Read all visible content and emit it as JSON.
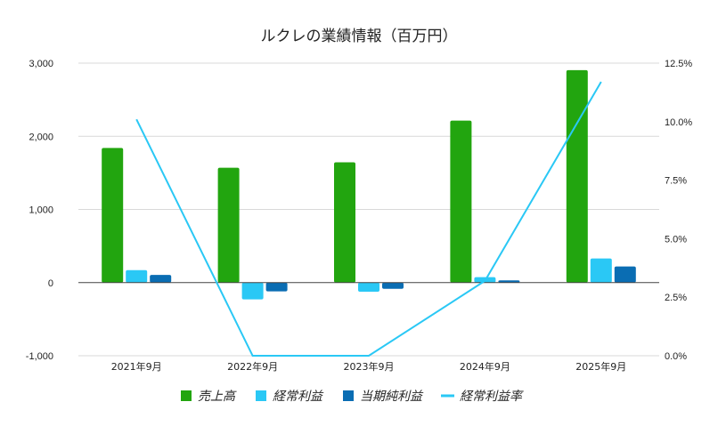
{
  "chart_data": {
    "type": "bar",
    "title": "ルクレの業績情報（百万円）",
    "categories": [
      "2021年9月",
      "2022年9月",
      "2023年9月",
      "2024年9月",
      "2025年9月"
    ],
    "series": [
      {
        "name": "売上高",
        "kind": "bar",
        "axis": "left",
        "color": "#22a50f",
        "values": [
          1840,
          1570,
          1645,
          2215,
          2905
        ]
      },
      {
        "name": "経常利益",
        "kind": "bar",
        "axis": "left",
        "color": "#2ac8f5",
        "values": [
          170,
          -230,
          -125,
          75,
          330
        ]
      },
      {
        "name": "当期純利益",
        "kind": "bar",
        "axis": "left",
        "color": "#0a6db3",
        "values": [
          105,
          -120,
          -85,
          30,
          220
        ]
      },
      {
        "name": "経常利益率",
        "kind": "line",
        "axis": "right",
        "color": "#2ac8f5",
        "values": [
          10.1,
          0.0,
          0.0,
          3.2,
          11.7
        ]
      }
    ],
    "y_left": {
      "range": [
        -1000,
        3000
      ],
      "ticks": [
        -1000,
        0,
        1000,
        2000,
        3000
      ],
      "tick_labels": [
        "-1,000",
        "0",
        "1,000",
        "2,000",
        "3,000"
      ]
    },
    "y_right": {
      "range": [
        0,
        12.5
      ],
      "ticks": [
        0,
        2.5,
        5,
        7.5,
        10,
        12.5
      ],
      "tick_labels": [
        "0.0%",
        "2.5%",
        "5.0%",
        "7.5%",
        "10.0%",
        "12.5%"
      ]
    },
    "xlabel": "",
    "ylabel": "",
    "grid": true,
    "legend_position": "bottom"
  }
}
